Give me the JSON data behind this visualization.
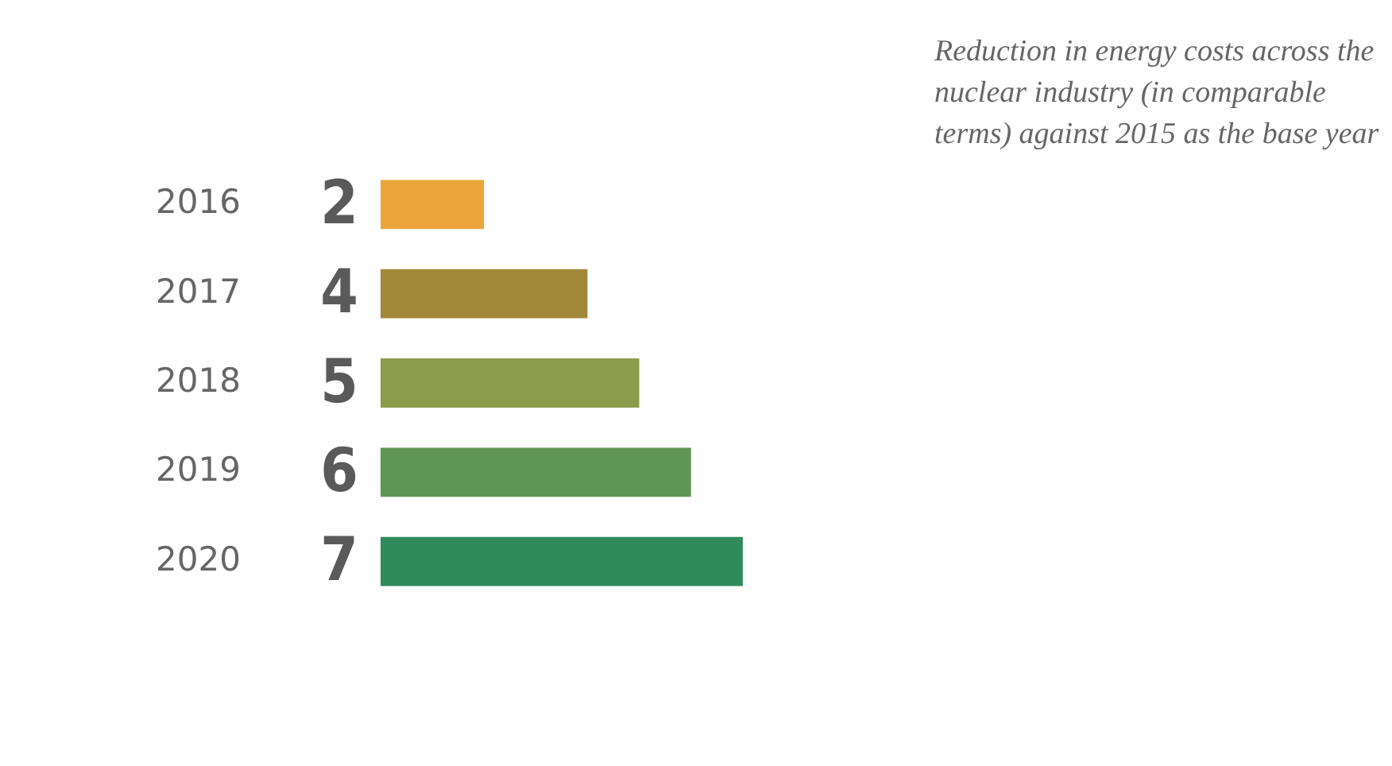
{
  "chart_data": {
    "type": "bar",
    "orientation": "horizontal",
    "title": "Reduction in energy costs across the nuclear industry (in comparable terms) against 2015 as the base year",
    "categories": [
      "2016",
      "2017",
      "2018",
      "2019",
      "2020"
    ],
    "values": [
      2,
      4,
      5,
      6,
      7
    ],
    "colors": [
      "#e9a53c",
      "#a3883a",
      "#8c9c4c",
      "#5f9556",
      "#2f8a5c"
    ],
    "data_labels": true,
    "grid": false,
    "legend": false
  }
}
